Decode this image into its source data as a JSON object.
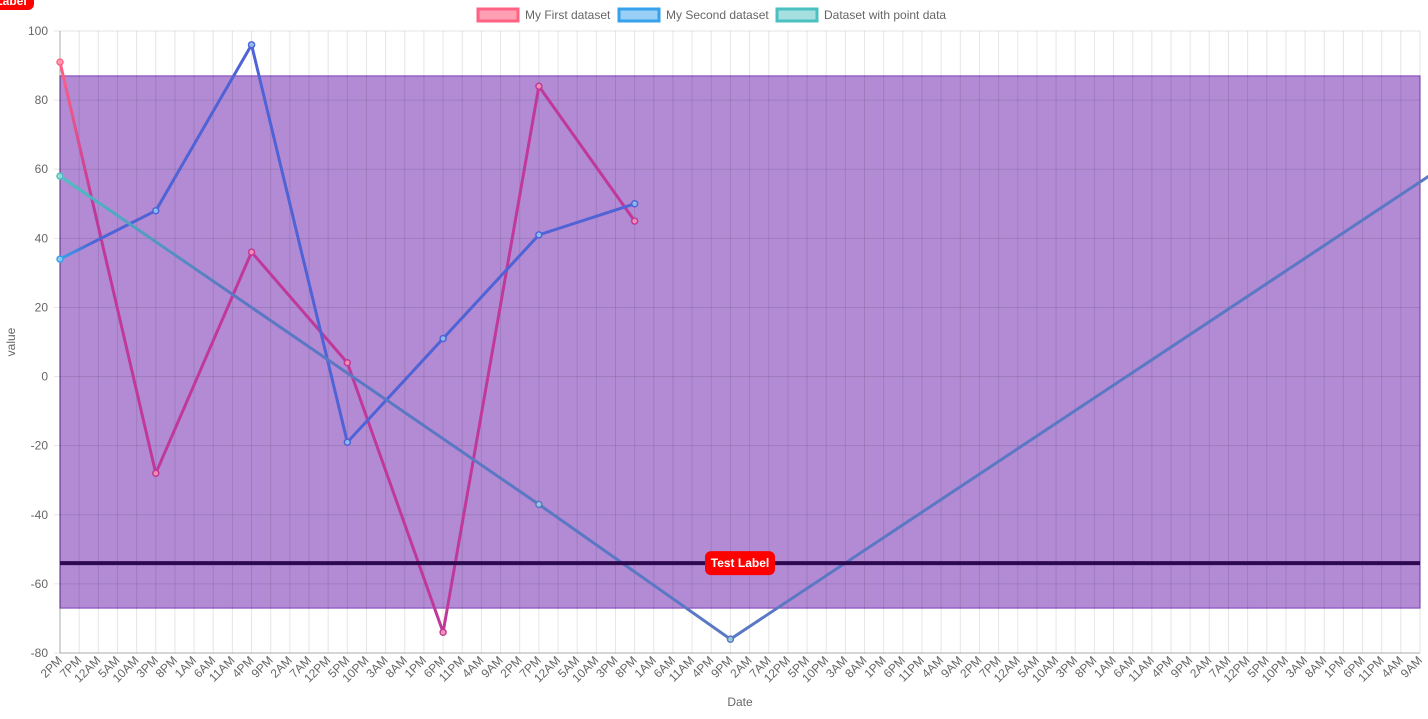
{
  "chart_data": {
    "type": "line",
    "title": "",
    "xlabel": "Date",
    "ylabel": "value",
    "ylim": [
      -80,
      100
    ],
    "yticks": [
      100,
      80,
      60,
      40,
      20,
      0,
      -20,
      -40,
      -60,
      -80
    ],
    "grid": true,
    "legend_position": "top-center",
    "x_ticks": [
      "2PM",
      "7PM",
      "12AM",
      "5AM",
      "10AM",
      "3PM",
      "8PM",
      "1AM",
      "6AM",
      "11AM",
      "4PM",
      "9PM",
      "2AM",
      "7AM",
      "12PM",
      "5PM",
      "10PM",
      "3AM",
      "8AM",
      "1PM",
      "6PM",
      "11PM",
      "4AM",
      "9AM",
      "2PM",
      "7PM",
      "12AM",
      "5AM",
      "10AM",
      "3PM",
      "8PM",
      "1AM",
      "6AM",
      "11AM",
      "4PM",
      "9PM",
      "2AM",
      "7AM",
      "12PM",
      "5PM",
      "10PM",
      "3AM",
      "8AM",
      "1PM",
      "6PM",
      "11PM",
      "4AM",
      "9AM",
      "2PM",
      "7PM",
      "12AM",
      "5AM",
      "10AM",
      "3PM",
      "8PM",
      "1AM",
      "6AM",
      "11AM",
      "4PM",
      "9PM",
      "2AM",
      "7AM",
      "12PM",
      "5PM",
      "10PM",
      "3AM",
      "8AM",
      "1PM",
      "6PM",
      "11PM",
      "4AM",
      "9AM"
    ],
    "series": [
      {
        "name": "My First dataset",
        "color": "#c0399a",
        "start_color": "#ff6384",
        "fill": "#ff9fb3",
        "tick_index": [
          0,
          5,
          10,
          15,
          20,
          25,
          30
        ],
        "values": [
          91,
          -28,
          36,
          4,
          -74,
          84,
          45
        ]
      },
      {
        "name": "My Second dataset",
        "color": "#4f63d6",
        "start_color": "#36a2eb",
        "fill": "#9ad0f5",
        "tick_index": [
          0,
          5,
          10,
          15,
          20,
          25,
          30
        ],
        "values": [
          34,
          48,
          96,
          -19,
          11,
          41,
          50
        ]
      },
      {
        "name": "Dataset with point data",
        "color": "#5b78c4",
        "start_color": "#4bc0c0",
        "fill": "#a5dfdf",
        "tick_index": [
          0,
          25,
          35,
          75
        ],
        "values": [
          58,
          -37,
          -76,
          71
        ]
      }
    ],
    "annotations": {
      "box": {
        "ymin": -67,
        "ymax": 87,
        "fill": "#7e3db8",
        "opacity": 0.6
      },
      "line": {
        "y": -54,
        "color": "#2d0a50",
        "label": "Test Label"
      },
      "corner_label": "Label",
      "label_color": "#ff0000"
    }
  }
}
